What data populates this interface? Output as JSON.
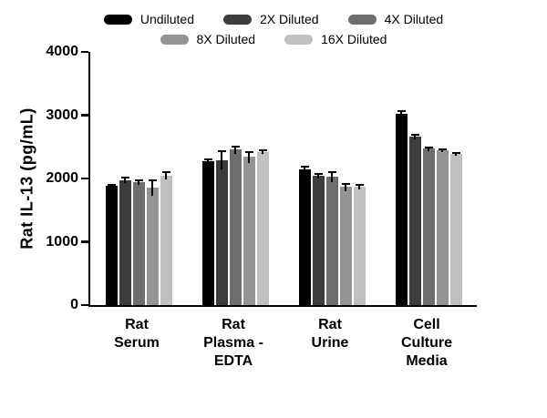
{
  "chart_data": {
    "type": "bar",
    "title": "",
    "xlabel": "",
    "ylabel": "Rat IL-13 (pg/mL)",
    "ylim": [
      0,
      4000
    ],
    "yticks": [
      0,
      1000,
      2000,
      3000,
      4000
    ],
    "grid": false,
    "legend_position": "top",
    "legend_rows": [
      3,
      2
    ],
    "categories": [
      "Rat\nSerum",
      "Rat\nPlasma -\nEDTA",
      "Rat\nUrine",
      "Cell\nCulture\nMedia"
    ],
    "series": [
      {
        "name": "Undiluted",
        "color": "#000000",
        "values": [
          1880,
          2270,
          2150,
          3020
        ],
        "errors": [
          40,
          40,
          50,
          60
        ]
      },
      {
        "name": "2X Diluted",
        "color": "#3d3d3d",
        "values": [
          1975,
          2290,
          2040,
          2665
        ],
        "errors": [
          50,
          150,
          40,
          45
        ]
      },
      {
        "name": "4X Diluted",
        "color": "#6e6e6e",
        "values": [
          1945,
          2455,
          2030,
          2470
        ],
        "errors": [
          45,
          70,
          90,
          35
        ]
      },
      {
        "name": "8X Diluted",
        "color": "#949494",
        "values": [
          1855,
          2340,
          1865,
          2445
        ],
        "errors": [
          130,
          95,
          70,
          25
        ]
      },
      {
        "name": "16X Diluted",
        "color": "#c0c0c0",
        "values": [
          2050,
          2420,
          1875,
          2390
        ],
        "errors": [
          70,
          35,
          40,
          35
        ]
      }
    ]
  }
}
